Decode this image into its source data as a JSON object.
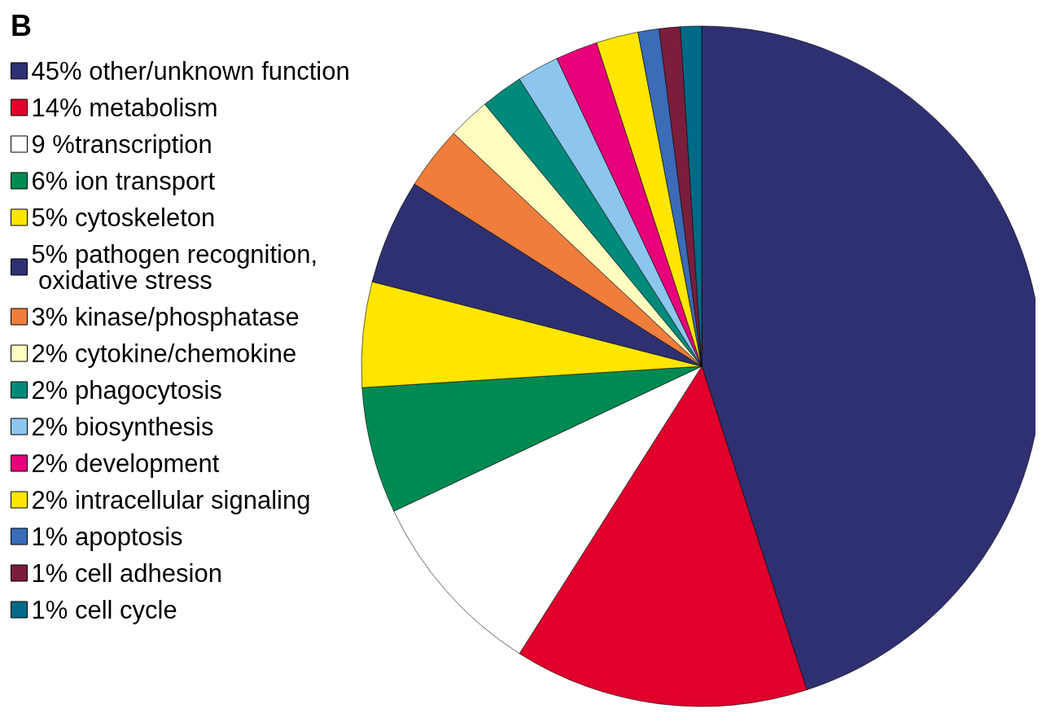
{
  "chart_data": {
    "type": "pie",
    "title": "B",
    "legend": "left",
    "categories": [
      "45% other/unknown function",
      "14% metabolism",
      "9 %transcription",
      "6% ion transport",
      "5% cytoskeleton",
      "5% pathogen recognition,\n oxidative stress",
      "3% kinase/phosphatase",
      "2% cytokine/chemokine",
      "2% phagocytosis",
      "2% biosynthesis",
      "2% development",
      "2% intracellular signaling",
      "1% apoptosis",
      "1% cell adhesion",
      "1% cell cycle"
    ],
    "values": [
      45,
      14,
      9,
      6,
      5,
      5,
      3,
      2,
      2,
      2,
      2,
      2,
      1,
      1,
      1
    ],
    "colors": [
      "#2e3072",
      "#e0002b",
      "#ffffff",
      "#008a52",
      "#ffe600",
      "#2e3072",
      "#ef7d3c",
      "#fffcc0",
      "#008a7a",
      "#8cc6ef",
      "#e8007a",
      "#ffe600",
      "#3a6cb8",
      "#7a1e3c",
      "#006a88"
    ]
  }
}
